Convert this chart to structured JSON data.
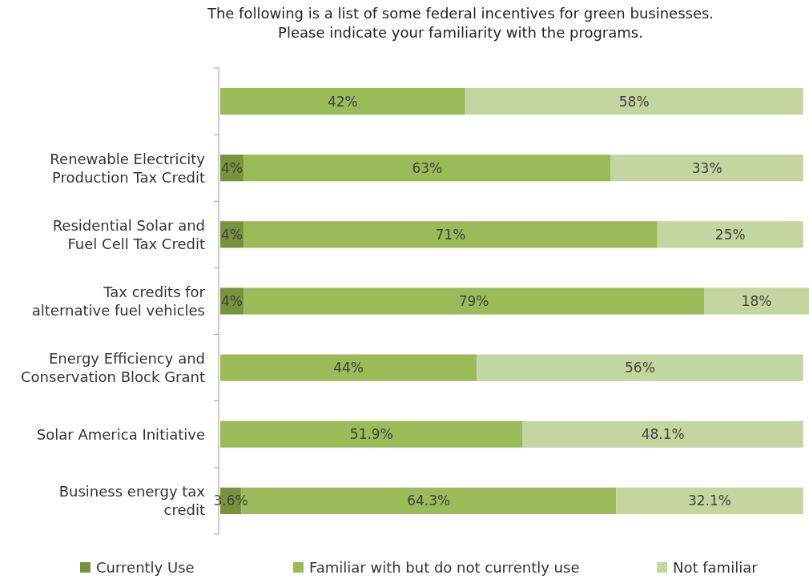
{
  "chart_data": {
    "type": "bar",
    "orientation": "horizontal",
    "stacked": true,
    "title": "The following is a list of some federal incentives for green businesses. Please indicate your familiarity with the programs.",
    "categories": [
      null,
      "Renewable Electricity Production Tax Credit",
      "Residential Solar and Fuel Cell Tax Credit",
      "Tax credits for alternative fuel vehicles",
      "Energy Efficiency and Conservation Block Grant",
      "Solar America Initiative",
      "Business energy tax credit"
    ],
    "series": [
      {
        "name": "Currently Use",
        "color": "#77933c",
        "values": [
          null,
          4,
          4,
          4,
          null,
          null,
          3.6
        ],
        "value_labels": [
          null,
          "4%",
          "4%",
          "4%",
          null,
          null,
          "3.6%"
        ]
      },
      {
        "name": "Familiar with but do not currently use",
        "color": "#9bbb59",
        "values": [
          42,
          63,
          71,
          79,
          44,
          51.9,
          64.3
        ],
        "value_labels": [
          "42%",
          "63%",
          "71%",
          "79%",
          "44%",
          "51.9%",
          "64.3%"
        ]
      },
      {
        "name": "Not familiar",
        "color": "#c4d6a0",
        "values": [
          58,
          33,
          25,
          18,
          56,
          48.1,
          32.1
        ],
        "value_labels": [
          "58%",
          "33%",
          "25%",
          "18%",
          "56%",
          "48.1%",
          "32.1%"
        ]
      }
    ],
    "legend": "bottom",
    "grid": false
  }
}
